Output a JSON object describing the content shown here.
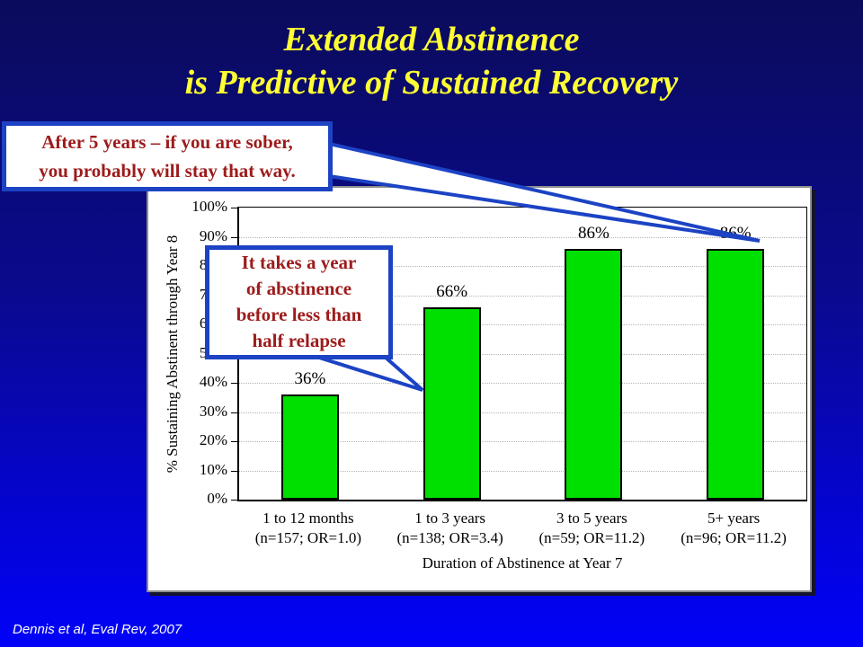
{
  "slide": {
    "title_line1": "Extended Abstinence",
    "title_line2": "is Predictive of Sustained Recovery",
    "citation": "Dennis et al, Eval Rev, 2007"
  },
  "callouts": {
    "top": {
      "line1": "After 5 years – if you are sober,",
      "line2": "you probably will stay that way."
    },
    "inner": {
      "line1": "It takes a year",
      "line2": "of abstinence",
      "line3": "before less than",
      "line4": "half relapse"
    }
  },
  "colors": {
    "background_top": "#0b0b5c",
    "background_bottom": "#0101f8",
    "title_yellow": "#ffff33",
    "callout_border_blue": "#1c43c4",
    "callout_text_red": "#9e1b1b",
    "bar_green": "#00e000"
  },
  "chart_data": {
    "type": "bar",
    "title": "",
    "categories": [
      "1 to 12 months",
      "1 to 3 years",
      "3 to 5 years",
      "5+ years"
    ],
    "category_sublabels": [
      "(n=157; OR=1.0)",
      "(n=138; OR=3.4)",
      "(n=59; OR=11.2)",
      "(n=96; OR=11.2)"
    ],
    "values": [
      36,
      66,
      86,
      86
    ],
    "bar_labels": [
      "36%",
      "66%",
      "86%",
      "86%"
    ],
    "xlabel": "Duration of Abstinence at Year 7",
    "ylabel": "% Sustaining Abstinent through Year 8",
    "ylim": [
      0,
      100
    ],
    "ytick_step": 10,
    "ytick_labels": [
      "0%",
      "10%",
      "20%",
      "30%",
      "40%",
      "50%",
      "60%",
      "70%",
      "80%",
      "90%",
      "100%"
    ],
    "grid": true,
    "legend": false,
    "bar_color": "#00e000",
    "bar_border_color": "#000000"
  }
}
